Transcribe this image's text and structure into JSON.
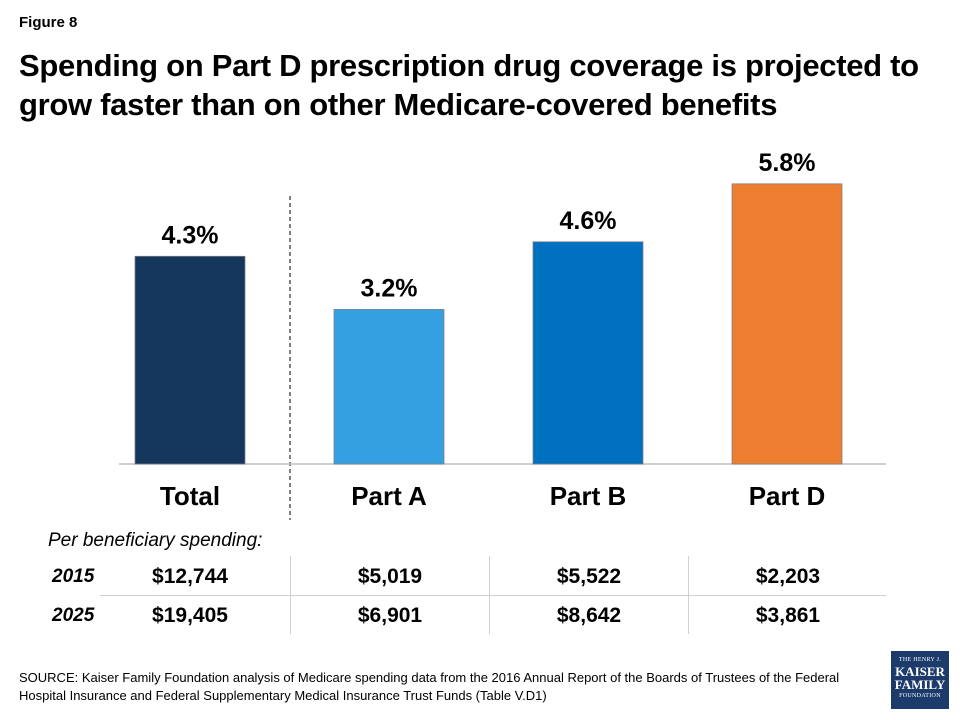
{
  "figure_label": "Figure 8",
  "title": "Spending on Part D prescription drug coverage is projected to grow faster than on other Medicare-covered benefits",
  "chart_data": {
    "type": "bar",
    "categories": [
      "Total",
      "Part A",
      "Part B",
      "Part D"
    ],
    "values": [
      4.3,
      3.2,
      4.6,
      5.8
    ],
    "value_labels": [
      "4.3%",
      "3.2%",
      "4.6%",
      "5.8%"
    ],
    "colors": [
      "#15375d",
      "#35a0e1",
      "#0070c0",
      "#ed7d31"
    ],
    "ylim": [
      0,
      6.5
    ],
    "grid": false,
    "title": "",
    "xlabel": "",
    "ylabel": ""
  },
  "table": {
    "label": "Per beneficiary spending:",
    "rows": [
      {
        "year": "2015",
        "values": [
          "$12,744",
          "$5,019",
          "$5,522",
          "$2,203"
        ]
      },
      {
        "year": "2025",
        "values": [
          "$19,405",
          "$6,901",
          "$8,642",
          "$3,861"
        ]
      }
    ]
  },
  "source": "SOURCE: Kaiser Family Foundation analysis of Medicare spending data from the 2016 Annual Report of the Boards of Trustees of the Federal Hospital Insurance and Federal Supplementary Medical Insurance Trust Funds (Table V.D1)",
  "logo": {
    "line1": "THE HENRY J.",
    "line2": "KAISER",
    "line3": "FAMILY",
    "line4": "FOUNDATION"
  }
}
